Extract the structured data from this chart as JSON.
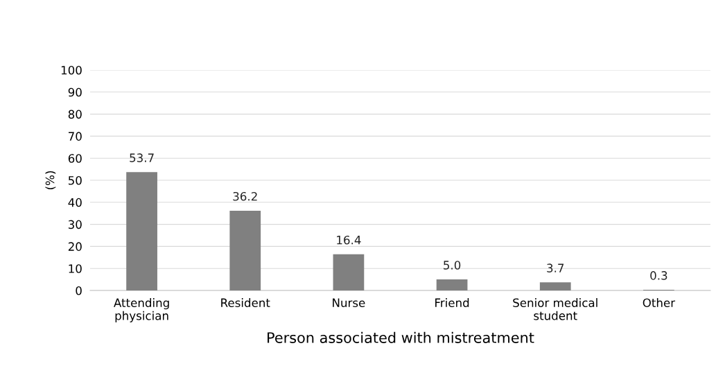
{
  "chart_data": {
    "type": "bar",
    "ylabel": "(%)",
    "xlabel": "Person associated with mistreatment",
    "categories": [
      "Attending\nphysician",
      "Resident",
      "Nurse",
      "Friend",
      "Senior medical\nstudent",
      "Other"
    ],
    "values": [
      53.7,
      36.2,
      16.4,
      5.0,
      3.7,
      0.3
    ],
    "value_labels": [
      "53.7",
      "36.2",
      "16.4",
      "5.0",
      "3.7",
      "0.3"
    ],
    "color": "#808080",
    "ylim": [
      0,
      100
    ],
    "yticks": [
      0,
      10,
      20,
      30,
      40,
      50,
      60,
      70,
      80,
      90,
      100
    ],
    "grid": "y"
  }
}
